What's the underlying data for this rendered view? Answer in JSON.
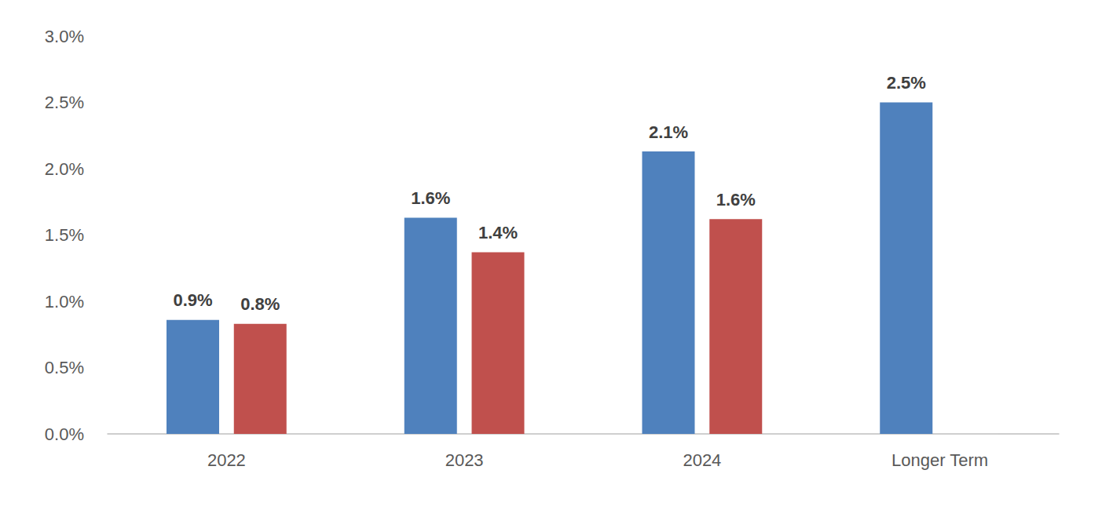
{
  "chart_data": {
    "type": "bar",
    "categories": [
      "2022",
      "2023",
      "2024",
      "Longer Term"
    ],
    "series": [
      {
        "color": "#4f81bd",
        "values": [
          0.86,
          1.63,
          2.13,
          2.5
        ],
        "value_labels": [
          "0.9%",
          "1.6%",
          "2.1%",
          "2.5%"
        ]
      },
      {
        "color": "#c0504d",
        "values": [
          0.83,
          1.37,
          1.62,
          null
        ],
        "value_labels": [
          "0.8%",
          "1.4%",
          "1.6%",
          null
        ]
      }
    ],
    "ylim": [
      0,
      3
    ],
    "yticks": [
      {
        "value": 0,
        "label": "0.0%"
      },
      {
        "value": 0.5,
        "label": "0.5%"
      },
      {
        "value": 1,
        "label": "1.0%"
      },
      {
        "value": 1.5,
        "label": "1.5%"
      },
      {
        "value": 2,
        "label": "2.0%"
      },
      {
        "value": 2.5,
        "label": "2.5%"
      },
      {
        "value": 3,
        "label": "3.0%"
      }
    ],
    "grid": false,
    "data_labels": true
  }
}
